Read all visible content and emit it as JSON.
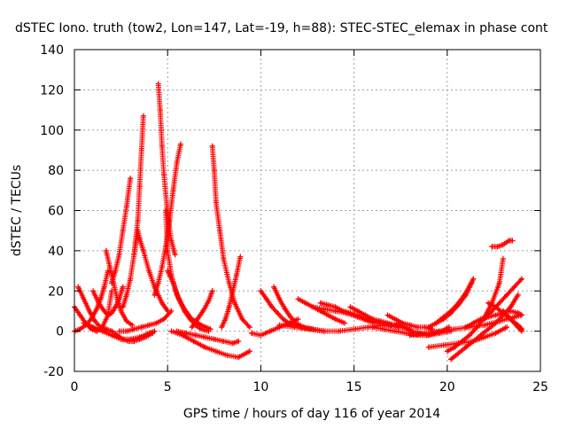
{
  "chart_data": {
    "type": "scatter",
    "title": "dSTEC Iono. truth (tow2, Lon=147, Lat=-19, h=88): STEC-STEC_elemax in phase cont",
    "xlabel": "GPS time / hours of day 116 of year 2014",
    "ylabel": "dSTEC  / TECUs",
    "xlim": [
      0,
      25
    ],
    "ylim": [
      -20,
      140
    ],
    "xticks": [
      0,
      5,
      10,
      15,
      20,
      25
    ],
    "yticks": [
      -20,
      0,
      20,
      40,
      60,
      80,
      100,
      120,
      140
    ],
    "xtick_labels": [
      "0",
      "5",
      "10",
      "15",
      "20",
      "25"
    ],
    "ytick_labels": [
      "-20",
      "0",
      "20",
      "40",
      "60",
      "80",
      "100",
      "120",
      "140"
    ],
    "grid": true,
    "marker": "+",
    "color": "#ff0000",
    "series": [
      {
        "x": [
          0.0,
          0.3,
          0.6,
          0.9,
          1.2,
          1.5,
          1.8,
          2.0
        ],
        "y": [
          12,
          8,
          4,
          1,
          0,
          2,
          8,
          20
        ]
      },
      {
        "x": [
          0.2,
          0.5,
          0.8,
          1.1,
          1.4,
          1.7,
          2.0
        ],
        "y": [
          22,
          16,
          10,
          5,
          2,
          1,
          0
        ]
      },
      {
        "x": [
          1.0,
          1.3,
          1.6,
          1.8,
          2.0,
          2.2,
          2.4,
          2.6
        ],
        "y": [
          20,
          14,
          10,
          8,
          9,
          12,
          16,
          22
        ]
      },
      {
        "x": [
          1.7,
          1.9,
          2.1,
          2.3,
          2.5,
          2.8,
          3.1
        ],
        "y": [
          40,
          32,
          24,
          16,
          10,
          5,
          3
        ]
      },
      {
        "x": [
          2.0,
          2.2,
          2.4,
          2.6,
          2.8,
          3.0
        ],
        "y": [
          24,
          30,
          38,
          50,
          62,
          76
        ]
      },
      {
        "x": [
          0.0,
          0.3,
          0.6,
          0.9,
          1.2,
          1.4,
          1.6,
          1.8
        ],
        "y": [
          0,
          1,
          3,
          6,
          11,
          16,
          22,
          30
        ]
      },
      {
        "x": [
          0.5,
          1.0,
          1.5,
          2.0,
          2.5,
          3.0,
          3.5,
          4.0,
          4.3
        ],
        "y": [
          4,
          2,
          0,
          -2,
          -4,
          -4,
          -3,
          -1,
          0
        ]
      },
      {
        "x": [
          2.0,
          2.3,
          2.6,
          2.9,
          3.2,
          3.5,
          3.8,
          4.2
        ],
        "y": [
          0,
          -2,
          -4,
          -5,
          -5,
          -4,
          -3,
          -1
        ]
      },
      {
        "x": [
          2.6,
          2.8,
          3.0,
          3.2,
          3.4,
          3.5,
          3.6,
          3.7
        ],
        "y": [
          12,
          18,
          26,
          38,
          55,
          72,
          90,
          107
        ]
      },
      {
        "x": [
          3.2,
          3.3,
          3.4,
          3.5,
          3.7,
          4.0,
          4.3,
          4.7,
          5.0
        ],
        "y": [
          38,
          44,
          50,
          46,
          40,
          30,
          22,
          14,
          10
        ]
      },
      {
        "x": [
          2.4,
          2.8,
          3.2,
          3.6,
          4.0,
          4.4,
          4.8,
          5.2
        ],
        "y": [
          0,
          0,
          1,
          2,
          3,
          4,
          6,
          10
        ]
      },
      {
        "x": [
          4.5,
          4.6,
          4.7,
          4.8,
          5.0,
          5.2,
          5.4
        ],
        "y": [
          123,
          110,
          92,
          78,
          58,
          45,
          38
        ]
      },
      {
        "x": [
          4.3,
          4.5,
          4.7,
          4.9,
          5.1,
          5.3,
          5.5,
          5.7
        ],
        "y": [
          18,
          24,
          32,
          42,
          55,
          70,
          84,
          93
        ]
      },
      {
        "x": [
          4.9,
          5.0,
          5.2,
          5.5,
          5.9,
          6.3,
          6.8,
          7.3
        ],
        "y": [
          60,
          40,
          28,
          18,
          11,
          6,
          3,
          1
        ]
      },
      {
        "x": [
          5.0,
          5.3,
          5.6,
          5.9,
          6.2,
          6.5,
          6.8,
          7.2
        ],
        "y": [
          30,
          24,
          16,
          10,
          6,
          3,
          1,
          0
        ]
      },
      {
        "x": [
          5.5,
          6.0,
          6.5,
          7.0,
          7.5,
          8.0,
          8.5,
          8.8
        ],
        "y": [
          0,
          -1,
          -2,
          -3,
          -4,
          -5,
          -6,
          -5
        ]
      },
      {
        "x": [
          6.3,
          6.6,
          6.9,
          7.2,
          7.4
        ],
        "y": [
          2,
          6,
          10,
          15,
          20
        ]
      },
      {
        "x": [
          7.4,
          7.5,
          7.6,
          7.8,
          8.0,
          8.3,
          8.6,
          9.0,
          9.4
        ],
        "y": [
          92,
          80,
          64,
          50,
          36,
          24,
          14,
          6,
          2
        ]
      },
      {
        "x": [
          7.9,
          8.1,
          8.3,
          8.5,
          8.7,
          8.9
        ],
        "y": [
          2,
          6,
          12,
          20,
          28,
          37
        ]
      },
      {
        "x": [
          5.2,
          5.8,
          6.4,
          7.0,
          7.6,
          8.2,
          8.8,
          9.4
        ],
        "y": [
          0,
          -2,
          -5,
          -8,
          -10,
          -12,
          -13,
          -10
        ]
      },
      {
        "x": [
          9.5,
          10.0,
          10.5,
          11.0,
          11.5,
          12.0
        ],
        "y": [
          -1,
          -2,
          0,
          2,
          4,
          6
        ]
      },
      {
        "x": [
          10.0,
          10.3,
          10.6,
          10.9,
          11.2,
          11.5,
          11.8,
          12.2,
          12.8
        ],
        "y": [
          20,
          16,
          12,
          9,
          6,
          4,
          3,
          2,
          1
        ]
      },
      {
        "x": [
          10.7,
          11.0,
          11.3,
          11.6,
          11.9,
          12.3,
          12.8,
          13.4
        ],
        "y": [
          22,
          16,
          11,
          7,
          4,
          2,
          1,
          0
        ]
      },
      {
        "x": [
          11.0,
          11.8,
          12.6,
          13.4,
          14.2,
          15.0,
          15.8,
          16.6,
          17.4
        ],
        "y": [
          3,
          2,
          1,
          0,
          0,
          1,
          2,
          3,
          2
        ]
      },
      {
        "x": [
          12.0,
          12.4,
          12.8,
          13.2,
          13.6,
          14.0,
          14.5
        ],
        "y": [
          16,
          14,
          12,
          10,
          8,
          6,
          4
        ]
      },
      {
        "x": [
          12.8,
          13.4,
          14.0,
          14.6,
          15.2,
          15.8,
          16.4
        ],
        "y": [
          12,
          11,
          10,
          9,
          7,
          5,
          4
        ]
      },
      {
        "x": [
          13.2,
          13.6,
          14.0,
          14.4,
          14.8,
          15.2,
          15.6,
          16.0,
          16.5,
          17.0
        ],
        "y": [
          14,
          13,
          12,
          10,
          9,
          8,
          6,
          5,
          4,
          3
        ]
      },
      {
        "x": [
          14.8,
          15.2,
          15.6,
          16.0,
          16.4,
          16.8,
          17.2,
          17.6,
          18.0
        ],
        "y": [
          12,
          10,
          8,
          6,
          5,
          4,
          3,
          2,
          1
        ]
      },
      {
        "x": [
          16.8,
          17.2,
          17.6,
          18.0,
          18.4,
          18.8,
          19.2
        ],
        "y": [
          8,
          6,
          4,
          3,
          2,
          2,
          1
        ]
      },
      {
        "x": [
          17.3,
          17.7,
          18.1,
          18.5,
          18.9,
          19.3,
          19.7,
          20.1
        ],
        "y": [
          4,
          2,
          0,
          -1,
          -2,
          -1,
          0,
          2
        ]
      },
      {
        "x": [
          16.0,
          16.6,
          17.2,
          17.8,
          18.4,
          19.0,
          19.6,
          20.2
        ],
        "y": [
          2,
          1,
          0,
          -1,
          -2,
          -2,
          -1,
          0
        ]
      },
      {
        "x": [
          19.0,
          19.4,
          19.8,
          20.2,
          20.6,
          21.0,
          21.4
        ],
        "y": [
          2,
          4,
          6,
          9,
          13,
          18,
          26
        ]
      },
      {
        "x": [
          19.4,
          19.8,
          20.2,
          20.6,
          21.0,
          21.3
        ],
        "y": [
          4,
          7,
          10,
          14,
          19,
          24
        ]
      },
      {
        "x": [
          18.0,
          18.8,
          19.6,
          20.4,
          21.2,
          22.0,
          22.8,
          23.6,
          24.0
        ],
        "y": [
          -2,
          -1,
          0,
          1,
          2,
          3,
          5,
          7,
          8
        ]
      },
      {
        "x": [
          19.0,
          19.8,
          20.6,
          21.4,
          22.0,
          22.6,
          23.2
        ],
        "y": [
          -8,
          -7,
          -6,
          -5,
          -3,
          -1,
          2
        ]
      },
      {
        "x": [
          20.0,
          20.4,
          20.8,
          21.2,
          21.6,
          22.0,
          22.4,
          22.8,
          23.0
        ],
        "y": [
          -10,
          -8,
          -5,
          -2,
          2,
          7,
          14,
          24,
          36
        ]
      },
      {
        "x": [
          20.2,
          20.6,
          21.0,
          21.4,
          21.8,
          22.2,
          22.6,
          23.0,
          23.4,
          23.8
        ],
        "y": [
          -14,
          -11,
          -8,
          -5,
          -2,
          1,
          4,
          8,
          12,
          18
        ]
      },
      {
        "x": [
          21.0,
          21.4,
          21.8,
          22.2,
          22.6,
          23.0,
          23.4,
          23.8,
          24.0
        ],
        "y": [
          2,
          4,
          6,
          7,
          8,
          9,
          10,
          9,
          8
        ]
      },
      {
        "x": [
          22.0,
          22.4,
          22.8,
          23.2,
          23.6,
          24.0
        ],
        "y": [
          6,
          10,
          14,
          18,
          22,
          26
        ]
      },
      {
        "x": [
          22.2,
          22.6,
          23.0,
          23.4,
          23.8,
          24.0
        ],
        "y": [
          14,
          12,
          9,
          6,
          3,
          1
        ]
      },
      {
        "x": [
          23.0,
          23.2,
          23.4,
          23.6,
          23.8,
          24.0
        ],
        "y": [
          10,
          8,
          6,
          4,
          2,
          0
        ]
      },
      {
        "x": [
          22.4,
          22.7,
          23.0,
          23.3,
          23.5
        ],
        "y": [
          42,
          42,
          43,
          45,
          45
        ]
      }
    ]
  }
}
